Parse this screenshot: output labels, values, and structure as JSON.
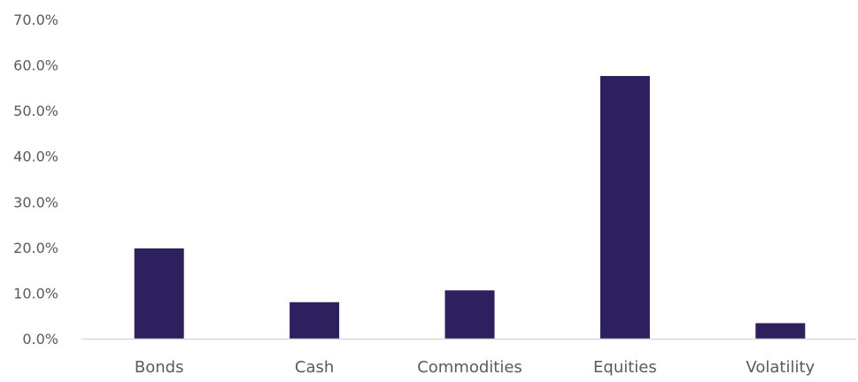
{
  "colors": {
    "bar": "#2e1f5e",
    "axis": "#d9d9d9",
    "text": "#5a5a5a"
  },
  "chart_data": {
    "type": "bar",
    "title": "",
    "xlabel": "",
    "ylabel": "",
    "categories": [
      "Bonds",
      "Cash",
      "Commodities",
      "Equities",
      "Volatility"
    ],
    "values": [
      19.8,
      8.0,
      10.6,
      57.6,
      3.4
    ],
    "ylim": [
      0,
      70
    ],
    "yticks": [
      0,
      10,
      20,
      30,
      40,
      50,
      60,
      70
    ],
    "ytick_labels": [
      "0.0%",
      "10.0%",
      "20.0%",
      "30.0%",
      "40.0%",
      "50.0%",
      "60.0%",
      "70.0%"
    ],
    "grid": false,
    "legend": "none"
  }
}
